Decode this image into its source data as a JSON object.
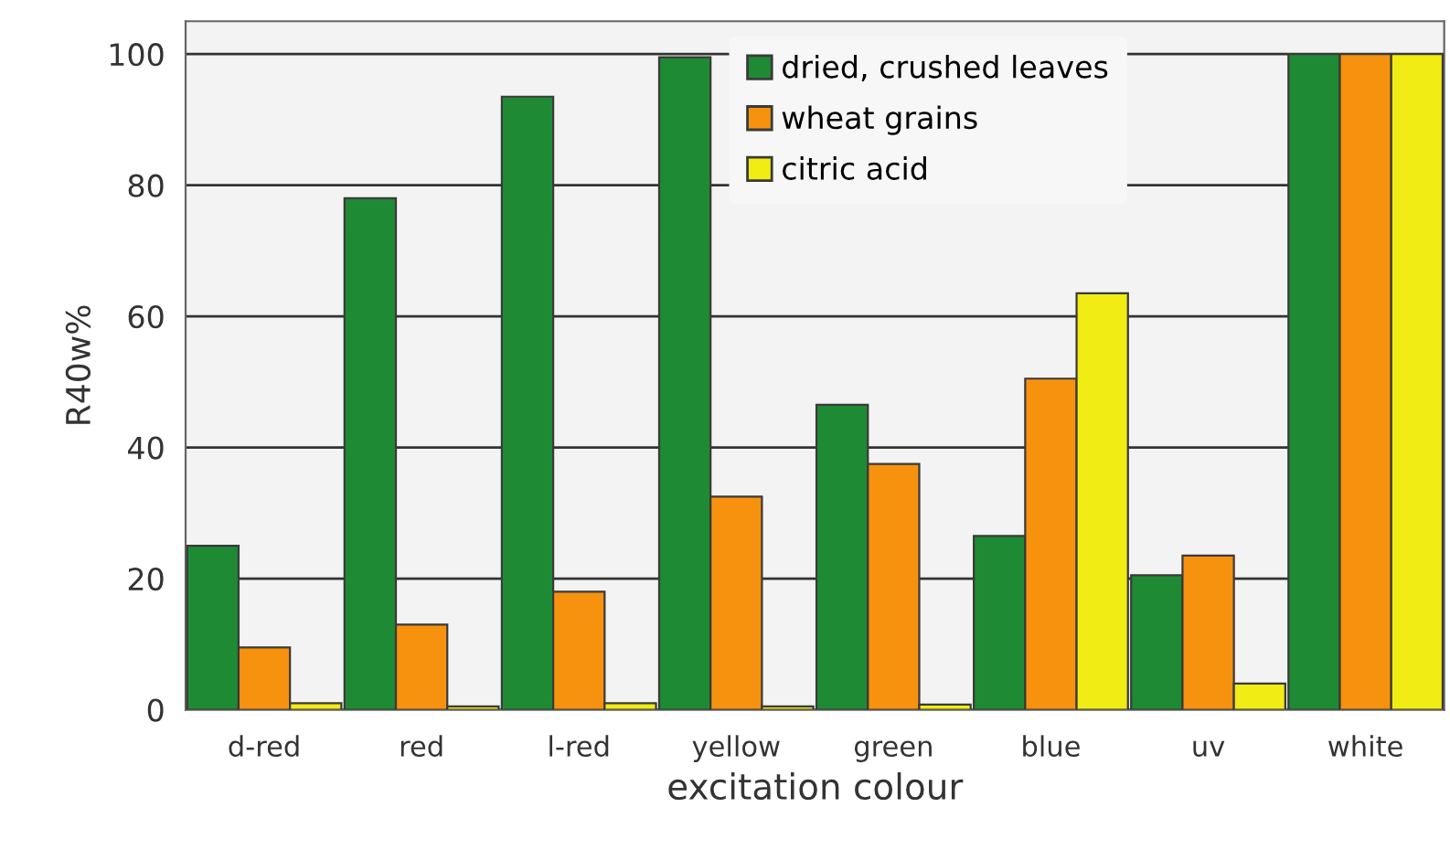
{
  "chart_data": {
    "type": "bar",
    "xlabel": "excitation colour",
    "ylabel": "R40w%",
    "categories": [
      "d-red",
      "red",
      "l-red",
      "yellow",
      "green",
      "blue",
      "uv",
      "white"
    ],
    "series": [
      {
        "name": "dried, crushed leaves",
        "color": "#1f8a34",
        "values": [
          25,
          78,
          93.5,
          99.5,
          46.5,
          26.5,
          20.5,
          100
        ]
      },
      {
        "name": "wheat grains",
        "color": "#f7920f",
        "values": [
          9.5,
          13,
          18,
          32.5,
          37.5,
          50.5,
          23.5,
          100
        ]
      },
      {
        "name": "citric acid",
        "color": "#f0ec14",
        "values": [
          1,
          0.5,
          1,
          0.5,
          0.8,
          63.5,
          4,
          100
        ]
      }
    ],
    "ylim": [
      0,
      105
    ],
    "yticks": [
      0,
      20,
      40,
      60,
      80,
      100
    ],
    "grid": "y",
    "legend": "top"
  }
}
